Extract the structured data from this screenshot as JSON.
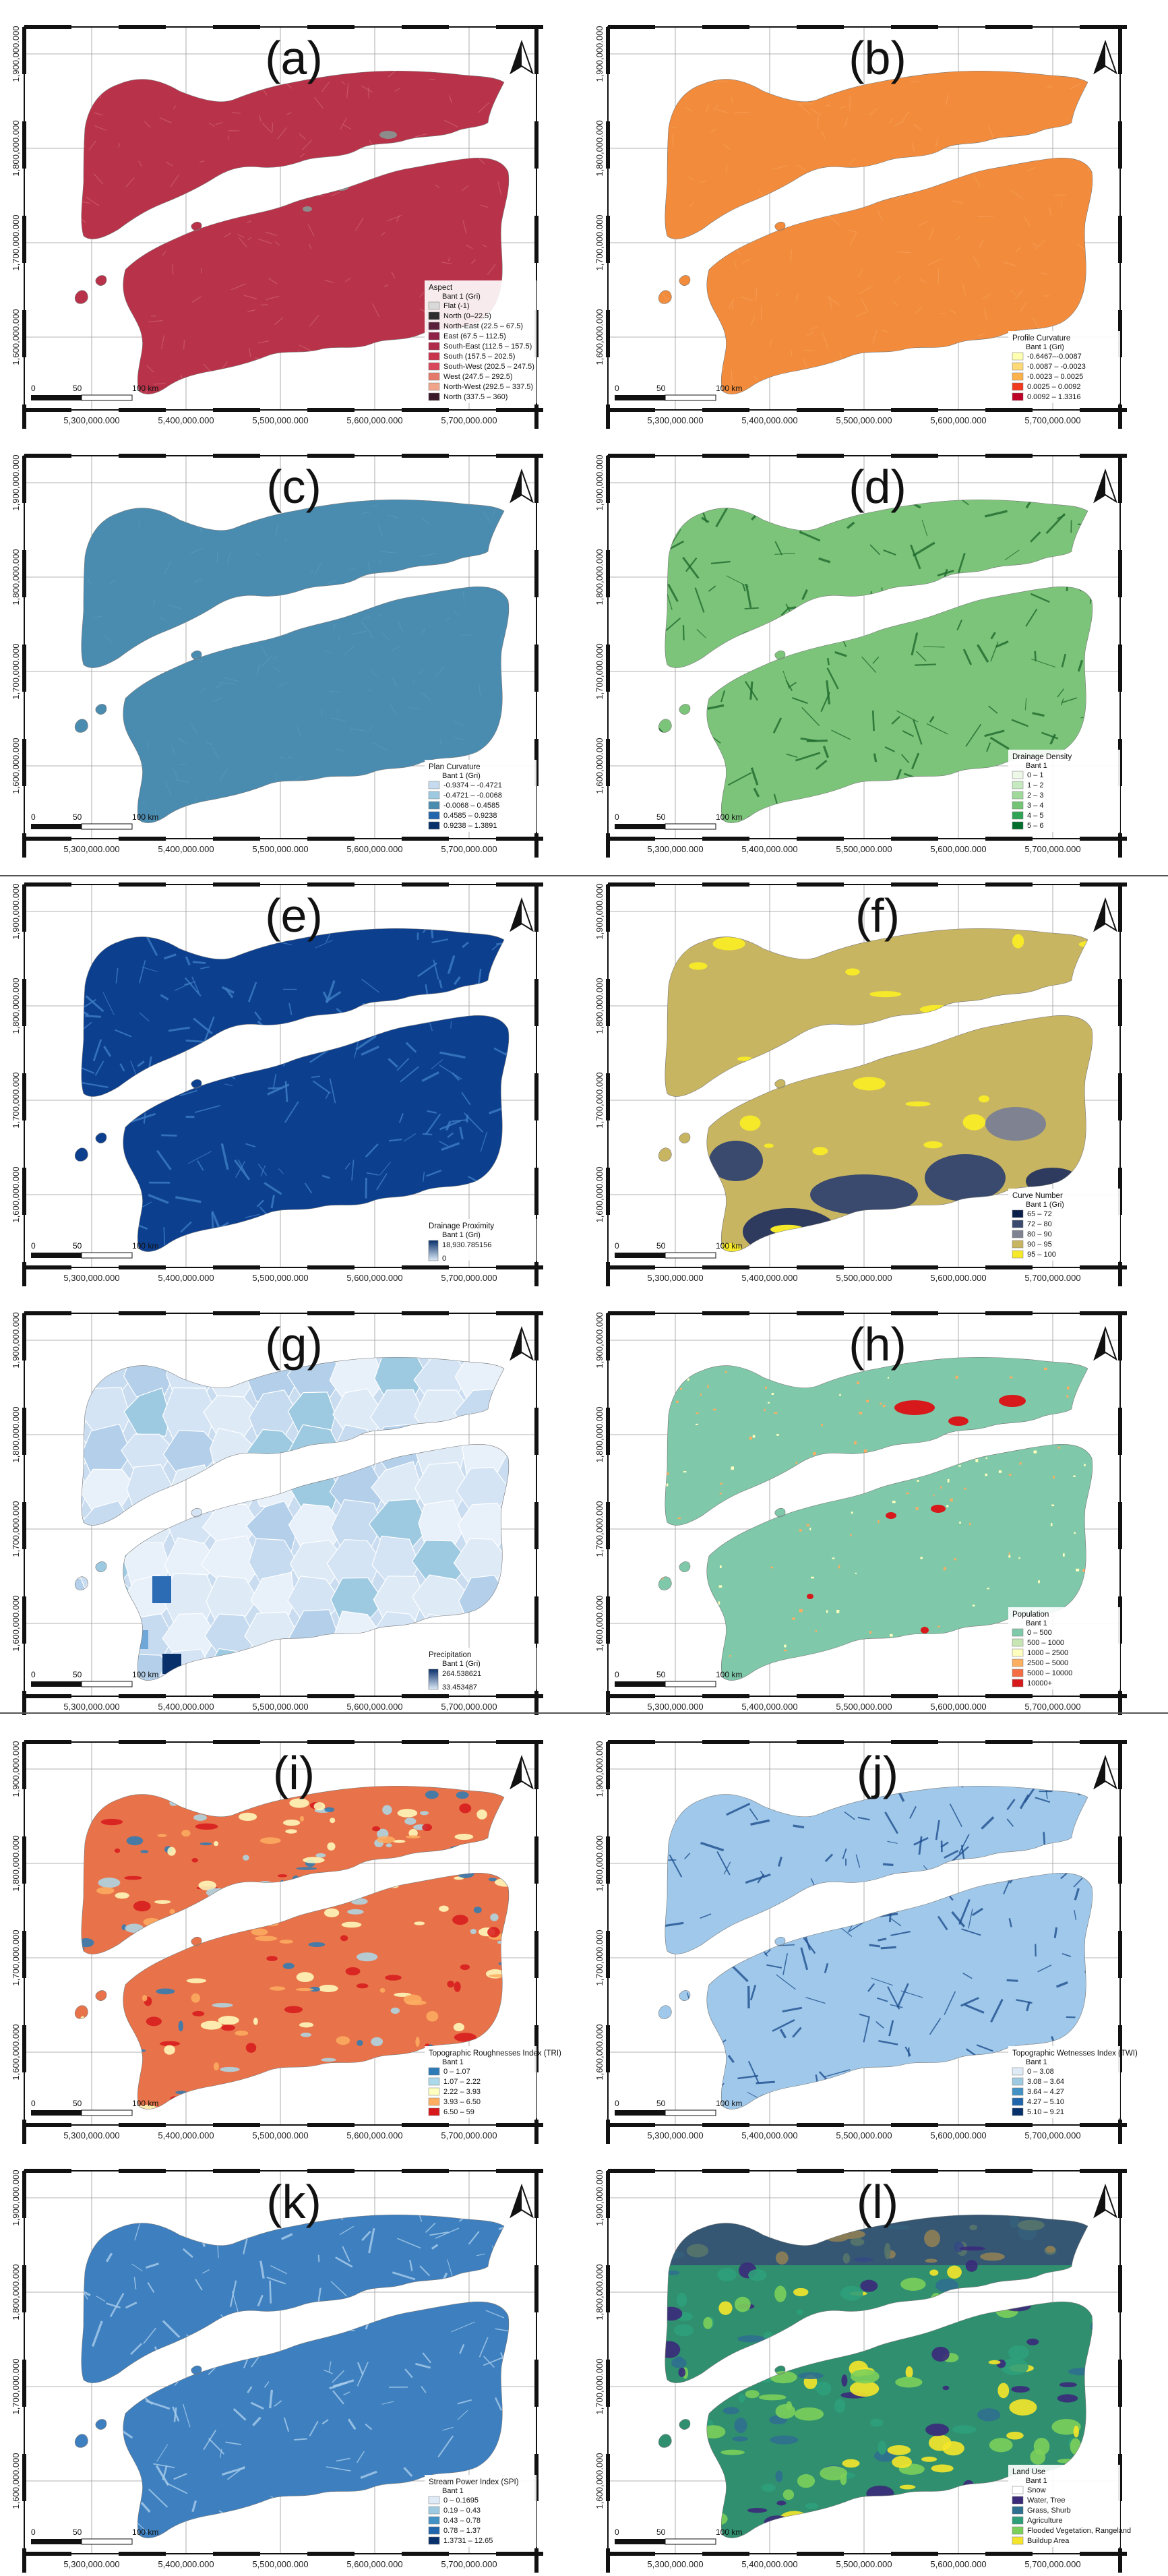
{
  "y_ticks": [
    "1,900,000.000",
    "1,800,000.000",
    "1,700,000.000",
    "1,600,000.000"
  ],
  "x_ticks": [
    "5,300,000.000",
    "5,400,000.000",
    "5,500,000.000",
    "5,600,000.000",
    "5,700,000.000"
  ],
  "scale": {
    "zero": "0",
    "mid": "50",
    "end": "100 km"
  },
  "panels": [
    {
      "letter": "(a)",
      "theme": "aspect",
      "fill": "#b8334a",
      "texture": "#d66a7a",
      "legend": {
        "title": "Aspect",
        "subtitle": "Bant 1 (Gri)",
        "items": [
          {
            "label": "Flat (-1)",
            "color": "#d9d9d9"
          },
          {
            "label": "North (0–22.5)",
            "color": "#2e2e2e"
          },
          {
            "label": "North-East (22.5 – 67.5)",
            "color": "#5a1f3b"
          },
          {
            "label": "East (67.5 – 112.5)",
            "color": "#8e2347"
          },
          {
            "label": "South-East (112.5 – 157.5)",
            "color": "#b02a4a"
          },
          {
            "label": "South (157.5 – 202.5)",
            "color": "#c8344c"
          },
          {
            "label": "South-West (202.5 – 247.5)",
            "color": "#d9485a"
          },
          {
            "label": "West (247.5 – 292.5)",
            "color": "#e57a6a"
          },
          {
            "label": "North-West (292.5 – 337.5)",
            "color": "#f0a58a"
          },
          {
            "label": "North (337.5 – 360)",
            "color": "#3a1a2a"
          }
        ]
      }
    },
    {
      "letter": "(b)",
      "theme": "profile",
      "fill": "#f28c3c",
      "texture": "#f5a35e",
      "legend": {
        "title": "Profile Curvature",
        "subtitle": "Bant 1 (Gri)",
        "items": [
          {
            "label": "-0.6467–-0.0087",
            "color": "#ffffb2"
          },
          {
            "label": "-0.0087 – -0.0023",
            "color": "#fed976"
          },
          {
            "label": "-0.0023 – 0.0025",
            "color": "#feb24c"
          },
          {
            "label": "0.0025 – 0.0092",
            "color": "#f03b20"
          },
          {
            "label": "0.0092 – 1.3316",
            "color": "#bd0026"
          }
        ]
      }
    },
    {
      "letter": "(c)",
      "theme": "plan",
      "fill": "#4a8bb0",
      "texture": "#5b9bbf",
      "legend": {
        "title": "Plan Curvature",
        "subtitle": "Bant 1 (Gri)",
        "items": [
          {
            "label": "-0.9374 – -0.4721",
            "color": "#c6dbef"
          },
          {
            "label": "-0.4721 – -0.0068",
            "color": "#9ecae1"
          },
          {
            "label": "-0.0068 – 0.4585",
            "color": "#4a8bb0"
          },
          {
            "label": "0.4585 – 0.9238",
            "color": "#2166ac"
          },
          {
            "label": "0.9238 – 1.3891",
            "color": "#08306b"
          }
        ]
      }
    },
    {
      "letter": "(d)",
      "theme": "drainage",
      "fill": "#7cc47a",
      "texture": "#1f6b2e",
      "legend": {
        "title": "Drainage Density",
        "subtitle": "Bant 1",
        "items": [
          {
            "label": "0 – 1",
            "color": "#edf8e9"
          },
          {
            "label": "1 – 2",
            "color": "#c7e9c0"
          },
          {
            "label": "2 – 3",
            "color": "#a1d99b"
          },
          {
            "label": "3 – 4",
            "color": "#74c476"
          },
          {
            "label": "4 – 5",
            "color": "#31a354"
          },
          {
            "label": "5 – 6",
            "color": "#006d2c"
          }
        ]
      }
    },
    {
      "letter": "(e)",
      "theme": "proximity",
      "fill": "#0d3f8f",
      "texture": "#3d7fc4",
      "legend": {
        "title": "Drainage Proximity",
        "subtitle": "Bant 1 (Gri)",
        "items": [
          {
            "label": "18,930.785156",
            "color": "#08306b"
          },
          {
            "label": "0",
            "color": "#deebf7"
          }
        ]
      }
    },
    {
      "letter": "(f)",
      "theme": "curve",
      "fill": "#c8b562",
      "texture": "#2e3b5e",
      "legend": {
        "title": "Curve Number",
        "subtitle": "Bant 1 (Gri)",
        "items": [
          {
            "label": "65 – 72",
            "color": "#0b1e4a"
          },
          {
            "label": "72 – 80",
            "color": "#3a4a6e"
          },
          {
            "label": "80 – 90",
            "color": "#7f8290"
          },
          {
            "label": "90 – 95",
            "color": "#c8b562"
          },
          {
            "label": "95 – 100",
            "color": "#f5e92a"
          }
        ]
      }
    },
    {
      "letter": "(g)",
      "theme": "precip",
      "fill": "#c9dcf0",
      "texture": "#9dc2e6",
      "legend": {
        "title": "Precipitation",
        "subtitle": "Bant 1 (Gri)",
        "items": [
          {
            "label": "264.538621",
            "color": "#08306b"
          },
          {
            "label": "33.453487",
            "color": "#deebf7"
          }
        ]
      }
    },
    {
      "letter": "(h)",
      "theme": "population",
      "fill": "#7fc8a9",
      "texture": "#d7191c",
      "legend": {
        "title": "Population",
        "subtitle": "Bant 1",
        "items": [
          {
            "label": "0 – 500",
            "color": "#7fc8a9"
          },
          {
            "label": "500 – 1000",
            "color": "#c7e6b4"
          },
          {
            "label": "1000 – 2500",
            "color": "#ffffbf"
          },
          {
            "label": "2500 – 5000",
            "color": "#fdae61"
          },
          {
            "label": "5000 – 10000",
            "color": "#f46d43"
          },
          {
            "label": "10000+",
            "color": "#d7191c"
          }
        ]
      }
    },
    {
      "letter": "(i)",
      "theme": "tri",
      "fill": "#e8734a",
      "texture": "#f0d47a",
      "legend": {
        "title": "Topographic Roughnesses Index (TRI)",
        "subtitle": "Bant 1",
        "items": [
          {
            "label": "0 – 1.07",
            "color": "#2c7bb6"
          },
          {
            "label": "1.07 – 2.22",
            "color": "#abd9e9"
          },
          {
            "label": "2.22 – 3.93",
            "color": "#ffffbf"
          },
          {
            "label": "3.93 – 6.50",
            "color": "#fdae61"
          },
          {
            "label": "6.50 – 59",
            "color": "#d7191c"
          }
        ]
      }
    },
    {
      "letter": "(j)",
      "theme": "twi",
      "fill": "#9fc8ea",
      "texture": "#1f4f8f",
      "legend": {
        "title": "Topographic Wetnesses Index (TWI)",
        "subtitle": "Bant 1",
        "items": [
          {
            "label": "0 – 3.08",
            "color": "#deebf7"
          },
          {
            "label": "3.08 – 3.64",
            "color": "#9ecae1"
          },
          {
            "label": "3.64 – 4.27",
            "color": "#4292c6"
          },
          {
            "label": "4.27 – 5.10",
            "color": "#2166ac"
          },
          {
            "label": "5.10 – 9.21",
            "color": "#08306b"
          }
        ]
      }
    },
    {
      "letter": "(k)",
      "theme": "spi",
      "fill": "#3d7fbf",
      "texture": "#a9cdeb",
      "legend": {
        "title": "Stream Power Index (SPI)",
        "subtitle": "Bant 1",
        "items": [
          {
            "label": "0 – 0.1695",
            "color": "#deebf7"
          },
          {
            "label": "0.19 – 0.43",
            "color": "#9ecae1"
          },
          {
            "label": "0.43 – 0.78",
            "color": "#4292c6"
          },
          {
            "label": "0.78 – 1.37",
            "color": "#2166ac"
          },
          {
            "label": "1.3731 – 12.65",
            "color": "#08306b"
          }
        ]
      }
    },
    {
      "letter": "(l)",
      "theme": "landuse",
      "fill": "#2f8f6e",
      "texture": "#3b2a7a",
      "legend": {
        "title": "Land Use",
        "subtitle": "Bant 1",
        "items": [
          {
            "label": "Snow",
            "color": "#ffffff"
          },
          {
            "label": "Water, Tree",
            "color": "#3b2a7a"
          },
          {
            "label": "Grass, Shurb",
            "color": "#2f6f8f"
          },
          {
            "label": "Agriculture",
            "color": "#2f9f7a"
          },
          {
            "label": "Flooded Vegetation, Rangeland",
            "color": "#7ccf5a"
          },
          {
            "label": "Buildup Area",
            "color": "#f5e52a"
          }
        ]
      }
    }
  ]
}
